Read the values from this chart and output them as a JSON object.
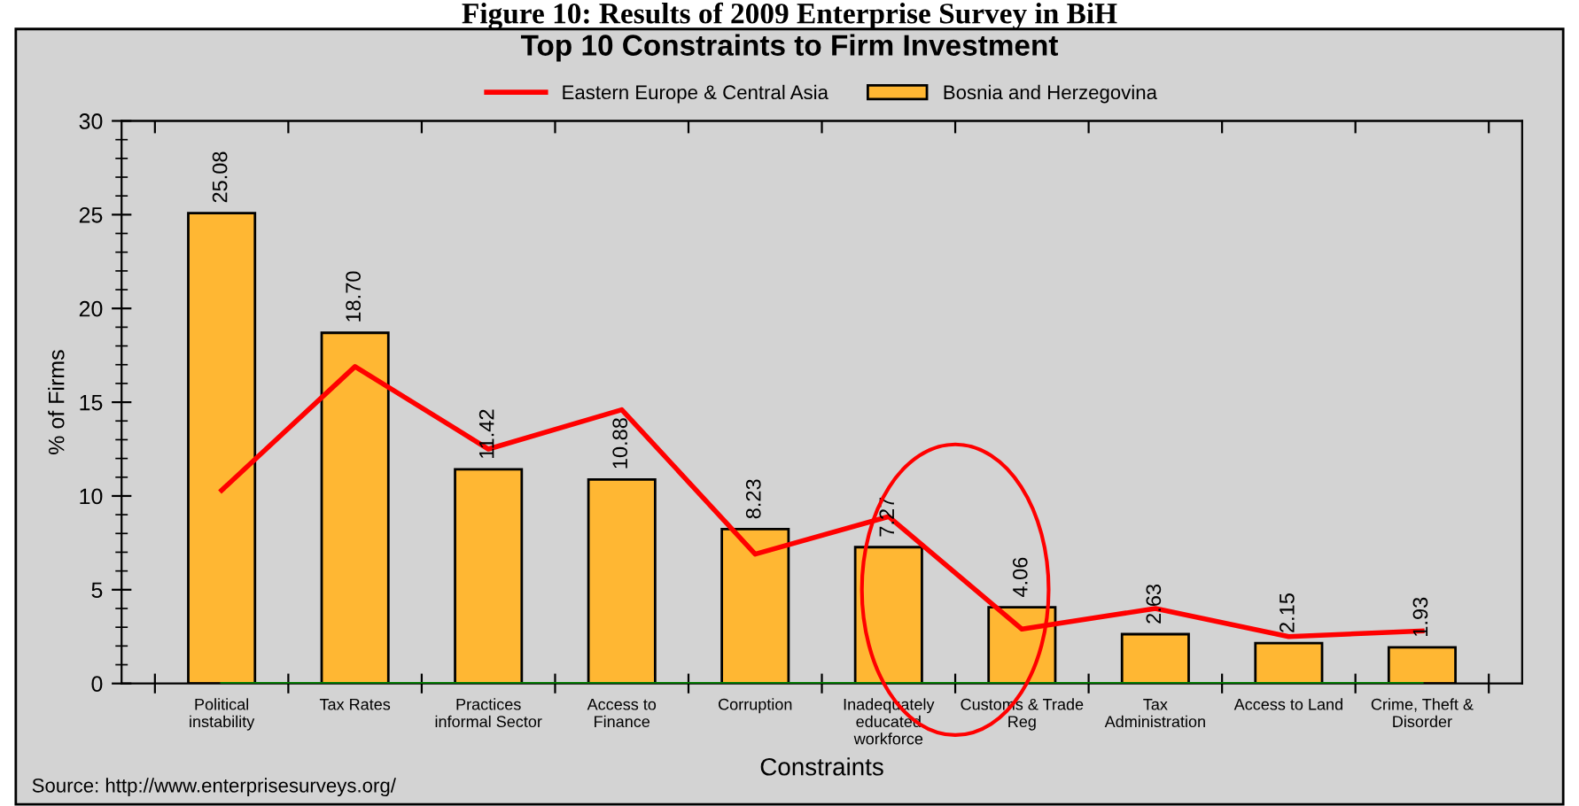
{
  "chart_data": {
    "type": "bar",
    "title": "Top 10 Constraints to Firm Investment",
    "xlabel": "Constraints",
    "ylabel": "% of Firms",
    "categories": [
      "Political\ninstability",
      "Tax Rates",
      "Practices\ninformal Sector",
      "Access to\nFinance",
      "Corruption",
      "Inadequately\neducated\nworkforce",
      "Customs & Trade\nReg",
      "Tax\nAdministration",
      "Access to Land",
      "Crime, Theft &\nDisorder"
    ],
    "series": [
      {
        "name": "Eastern Europe & Central Asia",
        "type": "line",
        "color": "#ff0000",
        "values": [
          10.3,
          16.9,
          12.5,
          14.6,
          6.9,
          8.9,
          2.9,
          4.0,
          2.5,
          2.8
        ]
      },
      {
        "name": "Bosnia and Herzegovina",
        "color": "#ffb733",
        "values": [
          25.08,
          18.7,
          11.42,
          10.88,
          8.23,
          7.27,
          4.06,
          2.63,
          2.15,
          1.93
        ],
        "value_labels": [
          "25.08",
          "18.70",
          "11.42",
          "10.88",
          "8.23",
          "7.27",
          "4.06",
          "2.63",
          "2.15",
          "1.93"
        ]
      }
    ],
    "ylim": [
      0,
      30
    ],
    "yticks": [
      0,
      5,
      10,
      15,
      20,
      25,
      30
    ],
    "grid": false,
    "legend": "top",
    "ref_lines": [
      {
        "axis": "y",
        "value": 0,
        "color": "#008000"
      }
    ],
    "annotations": [
      "Figure 10: Results of 2009 Enterprise Survey in BiH",
      "Source: http://www.enterprisesurveys.org/"
    ]
  }
}
